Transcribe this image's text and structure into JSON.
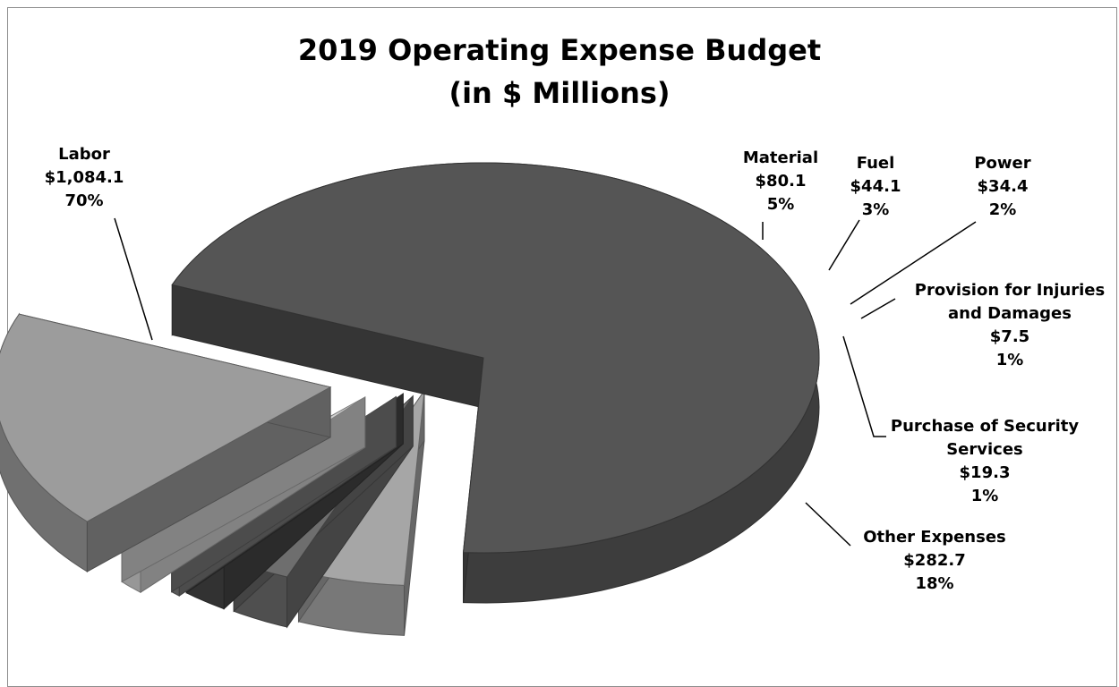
{
  "chart_data": {
    "type": "pie",
    "title": [
      "2019 Operating Expense Budget",
      "(in $ Millions)"
    ],
    "slices": [
      {
        "label": [
          "Labor"
        ],
        "value": 1084.1,
        "value_text": "$1,084.1",
        "pct": "70%",
        "color": "#555555"
      },
      {
        "label": [
          "Material"
        ],
        "value": 80.1,
        "value_text": "$80.1",
        "pct": "5%",
        "color": "#a6a6a6"
      },
      {
        "label": [
          "Fuel"
        ],
        "value": 44.1,
        "value_text": "$44.1",
        "pct": "3%",
        "color": "#6e6e6e"
      },
      {
        "label": [
          "Power"
        ],
        "value": 34.4,
        "value_text": "$34.4",
        "pct": "2%",
        "color": "#464646"
      },
      {
        "label": [
          "Provision for Injuries",
          "and Damages"
        ],
        "value": 7.5,
        "value_text": "$7.5",
        "pct": "1%",
        "color": "#7b7b7b"
      },
      {
        "label": [
          "Purchase of Security",
          "Services"
        ],
        "value": 19.3,
        "value_text": "$19.3",
        "pct": "1%",
        "color": "#d2d2d2"
      },
      {
        "label": [
          "Other Expenses"
        ],
        "value": 282.7,
        "value_text": "$282.7",
        "pct": "18%",
        "color": "#9c9c9c"
      }
    ],
    "legend": "none",
    "data_labels": "outside with leader lines"
  }
}
